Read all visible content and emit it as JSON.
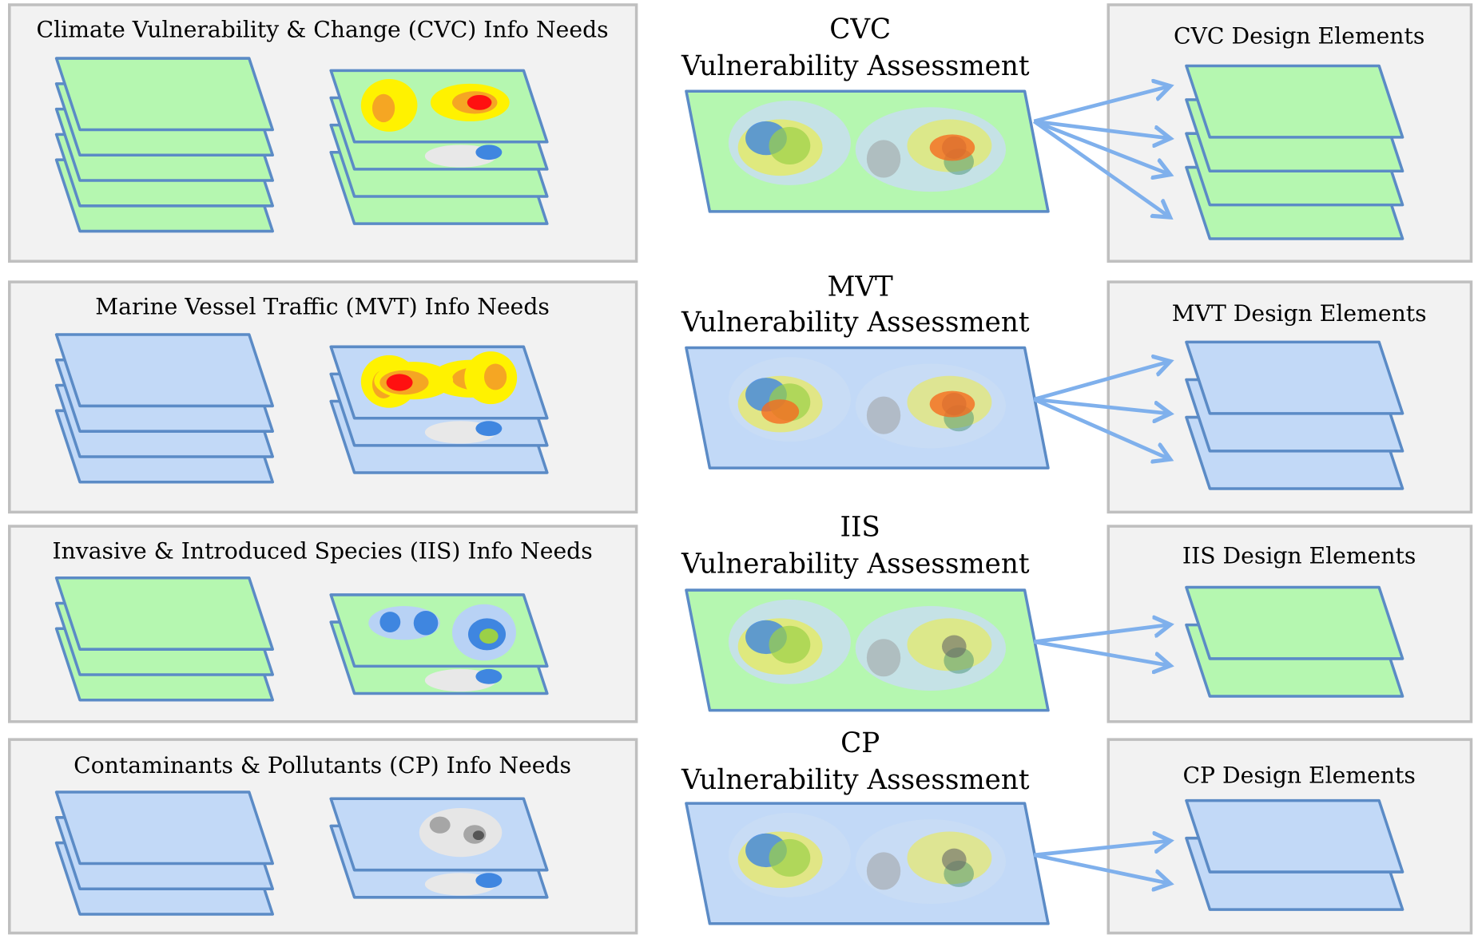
{
  "rows": [
    {
      "info_title": "Climate Vulnerability & Change (CVC) Info Needs",
      "assessment_abbr": "CVC",
      "assessment_label": "Vulnerability Assessment",
      "design_title": "CVC Design Elements"
    },
    {
      "info_title": "Marine Vessel Traffic (MVT) Info Needs",
      "assessment_abbr": "MVT",
      "assessment_label": "Vulnerability Assessment",
      "design_title": "MVT Design Elements"
    },
    {
      "info_title": "Invasive & Introduced Species (IIS) Info Needs",
      "assessment_abbr": "IIS",
      "assessment_label": "Vulnerability Assessment",
      "design_title": "IIS Design Elements"
    },
    {
      "info_title": "Contaminants & Pollutants (CP) Info Needs",
      "assessment_abbr": "CP",
      "assessment_label": "Vulnerability Assessment",
      "design_title": "CP Design Elements"
    }
  ]
}
